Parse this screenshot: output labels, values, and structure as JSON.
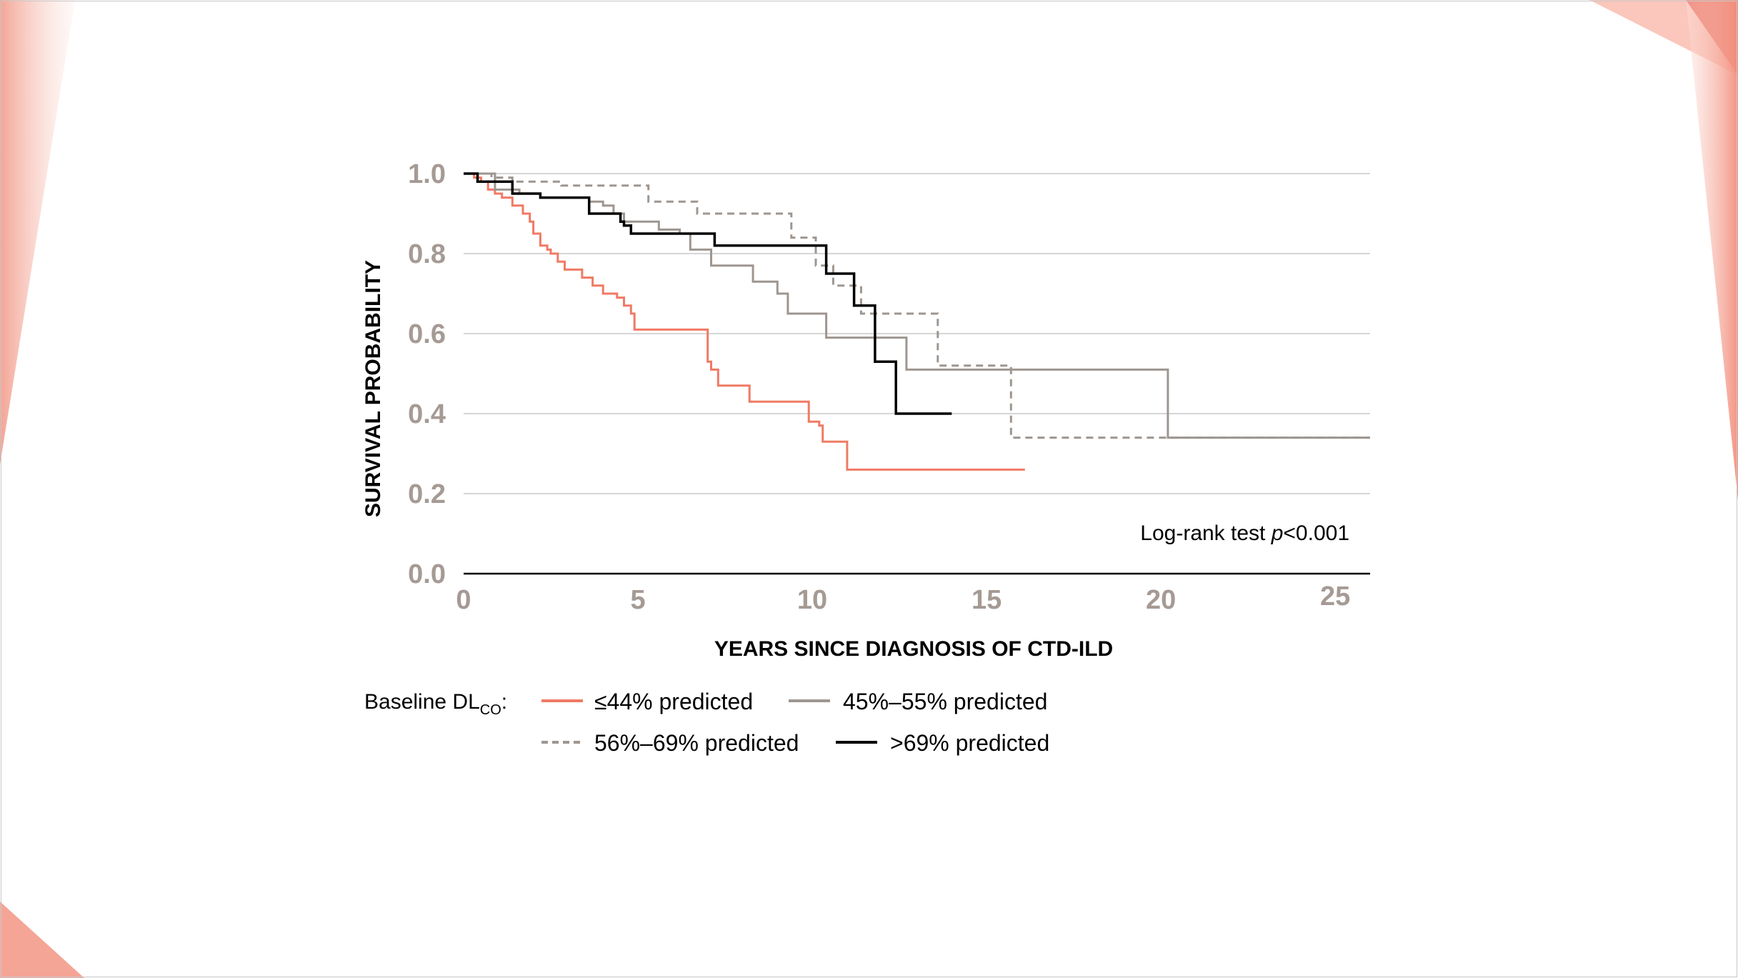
{
  "colors": {
    "red": "#f07a64",
    "gray": "#9e9690",
    "black": "#000000",
    "tick": "#a59a94",
    "grid": "#c8c8c8",
    "deco_light": "#fbd9d1",
    "deco_mid": "#f4a596",
    "deco_dark": "#e8604f"
  },
  "legend": {
    "title_prefix": "Baseline DL",
    "title_sub": "CO",
    "title_suffix": ":",
    "items": [
      {
        "label": "≤44% predicted",
        "style": "solid",
        "color": "#f07a64"
      },
      {
        "label": "45%–55% predicted",
        "style": "solid",
        "color": "#9e9690"
      },
      {
        "label": "56%–69% predicted",
        "style": "dashed",
        "color": "#9e9690"
      },
      {
        "label": ">69% predicted",
        "style": "solid",
        "color": "#000000"
      }
    ]
  },
  "chart_data": {
    "type": "line",
    "subtype": "kaplan-meier step",
    "title": "",
    "xlabel": "YEARS SINCE DIAGNOSIS OF CTD-ILD",
    "ylabel": "SURVIVAL PROBABILITY",
    "xlim": [
      0,
      26
    ],
    "ylim": [
      0,
      1
    ],
    "xticks": [
      0,
      5,
      10,
      15,
      20,
      25
    ],
    "xtick_labels": [
      "0",
      "5",
      "10",
      "15",
      "20",
      "25"
    ],
    "yticks": [
      0,
      0.2,
      0.4,
      0.6,
      0.8,
      1.0
    ],
    "ytick_labels": [
      "0.0",
      "0.2",
      "0.4",
      "0.6",
      "0.8",
      "1.0"
    ],
    "grid": true,
    "annotation": {
      "prefix": "Log-rank test ",
      "italic": "p",
      "suffix": "<0.001"
    },
    "series": [
      {
        "name": "≤44% predicted",
        "style": "solid",
        "color": "#f07a64",
        "x": [
          0,
          0.3,
          0.5,
          0.7,
          0.9,
          1.1,
          1.4,
          1.7,
          1.9,
          2.0,
          2.2,
          2.4,
          2.5,
          2.7,
          2.9,
          3.4,
          3.7,
          4.0,
          4.4,
          4.6,
          4.8,
          4.9,
          7.0,
          7.1,
          7.3,
          8.2,
          9.9,
          10.2,
          10.3,
          10.5,
          11.0,
          16.1
        ],
        "y": [
          1.0,
          0.99,
          0.98,
          0.96,
          0.95,
          0.94,
          0.92,
          0.9,
          0.88,
          0.85,
          0.82,
          0.81,
          0.8,
          0.78,
          0.76,
          0.74,
          0.72,
          0.7,
          0.69,
          0.67,
          0.65,
          0.61,
          0.53,
          0.51,
          0.47,
          0.43,
          0.38,
          0.37,
          0.33,
          0.33,
          0.26,
          0.26
        ]
      },
      {
        "name": "45%–55% predicted",
        "style": "solid",
        "color": "#9e9690",
        "x": [
          0,
          0.9,
          1.6,
          2.2,
          3.6,
          4.0,
          4.3,
          4.6,
          5.6,
          6.2,
          6.5,
          7.1,
          8.3,
          9.0,
          9.3,
          10.4,
          12.7,
          20.2,
          26.0
        ],
        "y": [
          1.0,
          0.96,
          0.95,
          0.94,
          0.93,
          0.92,
          0.9,
          0.88,
          0.86,
          0.85,
          0.81,
          0.77,
          0.73,
          0.7,
          0.65,
          0.59,
          0.51,
          0.34,
          0.34
        ]
      },
      {
        "name": "56%–69% predicted",
        "style": "dashed",
        "color": "#9e9690",
        "x": [
          0,
          0.8,
          1.4,
          2.8,
          5.3,
          6.7,
          9.4,
          10.1,
          10.6,
          11.4,
          13.6,
          15.2,
          15.7,
          26.0
        ],
        "y": [
          1.0,
          0.99,
          0.98,
          0.97,
          0.93,
          0.9,
          0.84,
          0.77,
          0.72,
          0.65,
          0.52,
          0.52,
          0.34,
          0.34
        ]
      },
      {
        "name": ">69% predicted",
        "style": "solid",
        "color": "#000000",
        "x": [
          0,
          0.4,
          1.4,
          2.2,
          3.6,
          4.5,
          4.6,
          4.8,
          7.2,
          10.4,
          11.2,
          11.8,
          12.4,
          14.0
        ],
        "y": [
          1.0,
          0.98,
          0.95,
          0.94,
          0.9,
          0.88,
          0.87,
          0.85,
          0.82,
          0.75,
          0.67,
          0.53,
          0.4,
          0.4
        ]
      }
    ]
  }
}
